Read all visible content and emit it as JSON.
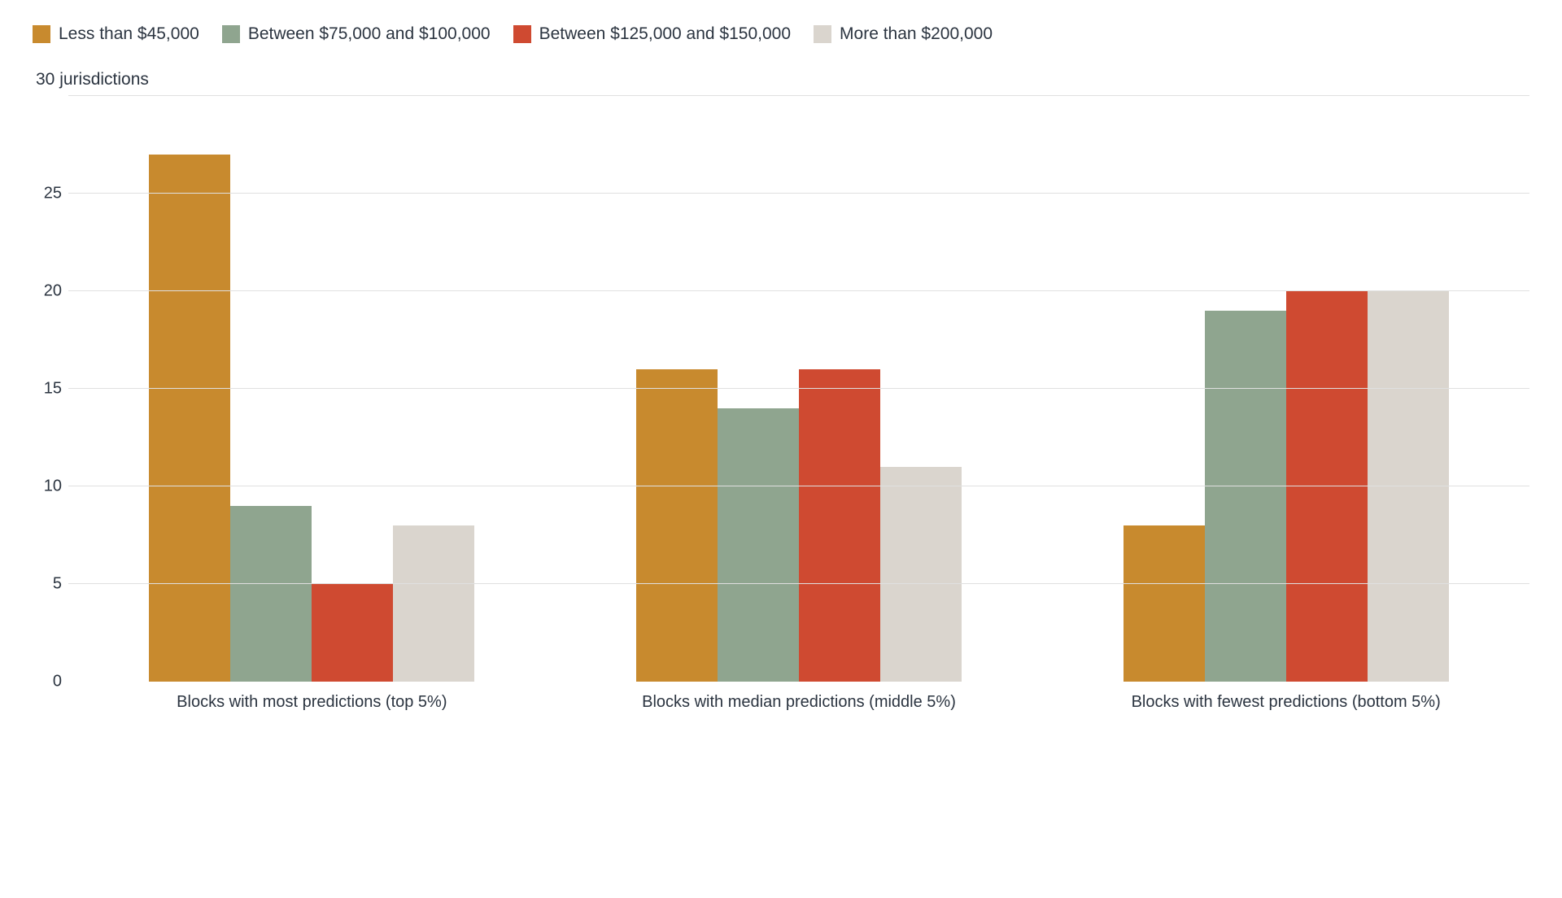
{
  "chart": {
    "type": "grouped-bar",
    "ylabel": "30 jurisdictions",
    "ylim": [
      0,
      30
    ],
    "yticks": [
      0,
      5,
      10,
      15,
      20,
      25
    ],
    "gridlines": [
      5,
      10,
      15,
      20,
      25,
      30
    ],
    "background_color": "#ffffff",
    "grid_color": "#e0e0e0",
    "axis_text_color": "#2b3440",
    "tick_fontsize": 20,
    "label_fontsize": 21,
    "legend_fontsize": 21,
    "series": [
      {
        "label": "Less than $45,000",
        "color": "#c88a2e"
      },
      {
        "label": "Between $75,000 and $100,000",
        "color": "#8fa58f"
      },
      {
        "label": "Between $125,000 and $150,000",
        "color": "#cf4a31"
      },
      {
        "label": "More than $200,000",
        "color": "#dad5ce"
      }
    ],
    "groups": [
      {
        "label": "Blocks with most predictions (top 5%)",
        "values": [
          27,
          9,
          5,
          8
        ]
      },
      {
        "label": "Blocks with median predictions (middle 5%)",
        "values": [
          16,
          14,
          16,
          11
        ]
      },
      {
        "label": "Blocks with fewest predictions (bottom 5%)",
        "values": [
          8,
          19,
          20,
          20
        ]
      }
    ]
  }
}
